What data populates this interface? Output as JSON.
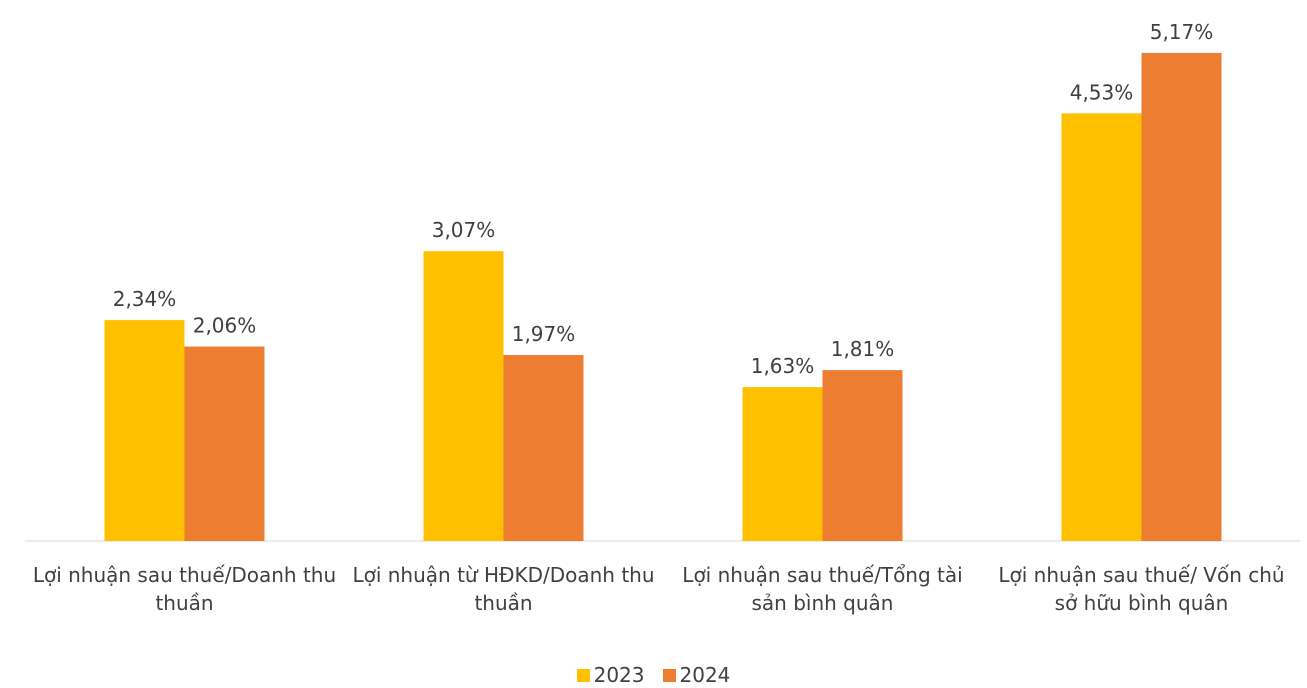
{
  "chart_data": {
    "type": "bar",
    "categories": [
      "Lợi nhuận sau thuế/Doanh thu thuần",
      "Lợi nhuận từ HĐKD/Doanh thu thuần",
      "Lợi nhuận sau thuế/Tổng tài sản bình quân",
      "Lợi nhuận sau thuế/ Vốn chủ sở hữu bình quân"
    ],
    "series": [
      {
        "name": "2023",
        "color": "#ffc000",
        "values": [
          2.34,
          3.07,
          1.63,
          4.53
        ],
        "value_labels": [
          "2,34%",
          "3,07%",
          "1,63%",
          "4,53%"
        ]
      },
      {
        "name": "2024",
        "color": "#ed7d31",
        "values": [
          2.06,
          1.97,
          1.81,
          5.17
        ],
        "value_labels": [
          "2,06%",
          "1,97%",
          "1,81%",
          "5,17%"
        ]
      }
    ],
    "legend": "bottom"
  }
}
